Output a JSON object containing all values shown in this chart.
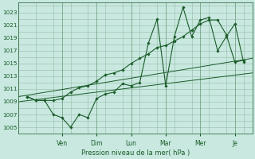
{
  "xlabel": "Pression niveau de la mer( hPa )",
  "bg_color": "#c8e8e0",
  "grid_color": "#99bbaa",
  "line_color": "#1a5c28",
  "ylim": [
    1004.0,
    1024.5
  ],
  "yticks": [
    1005,
    1007,
    1009,
    1011,
    1013,
    1015,
    1017,
    1019,
    1021,
    1023
  ],
  "x_day_labels": [
    "Ven",
    "Dim",
    "Lun",
    "Mar",
    "Mer",
    "Je"
  ],
  "x_day_positions": [
    2,
    4,
    6,
    8,
    10,
    12
  ],
  "xlim": [
    -0.5,
    13.0
  ],
  "trend1_x": [
    -0.5,
    13.0
  ],
  "trend1_y": [
    1009.8,
    1015.8
  ],
  "trend2_x": [
    -0.5,
    13.0
  ],
  "trend2_y": [
    1009.0,
    1013.5
  ],
  "jagged_x": [
    0,
    0.5,
    1.0,
    1.5,
    2.0,
    2.5,
    3.0,
    3.5,
    4.0,
    4.5,
    5.0,
    5.5,
    6.0,
    6.5,
    7.0,
    7.5,
    8.0,
    8.5,
    9.0,
    9.5,
    10.0,
    10.5,
    11.0,
    11.5,
    12.0,
    12.5
  ],
  "jagged_y": [
    1009.8,
    1009.2,
    1009.2,
    1007.0,
    1006.5,
    1005.0,
    1007.0,
    1006.5,
    1009.5,
    1010.2,
    1010.5,
    1011.8,
    1011.5,
    1012.0,
    1018.2,
    1021.9,
    1011.5,
    1019.2,
    1023.8,
    1019.2,
    1021.8,
    1022.2,
    1017.0,
    1019.2,
    1021.2,
    1015.2
  ],
  "smooth_x": [
    0,
    0.5,
    1.0,
    1.5,
    2.0,
    2.5,
    3.0,
    3.5,
    4.0,
    4.5,
    5.0,
    5.5,
    6.0,
    6.5,
    7.0,
    7.5,
    8.0,
    8.5,
    9.0,
    9.5,
    10.0,
    10.5,
    11.0,
    11.5,
    12.0,
    12.5
  ],
  "smooth_y": [
    1009.8,
    1009.2,
    1009.2,
    1009.2,
    1009.5,
    1010.5,
    1011.2,
    1011.5,
    1012.2,
    1013.2,
    1013.5,
    1014.0,
    1015.0,
    1015.8,
    1016.5,
    1017.5,
    1017.8,
    1018.5,
    1019.2,
    1020.2,
    1021.2,
    1021.8,
    1021.8,
    1019.5,
    1015.2,
    1015.5
  ]
}
